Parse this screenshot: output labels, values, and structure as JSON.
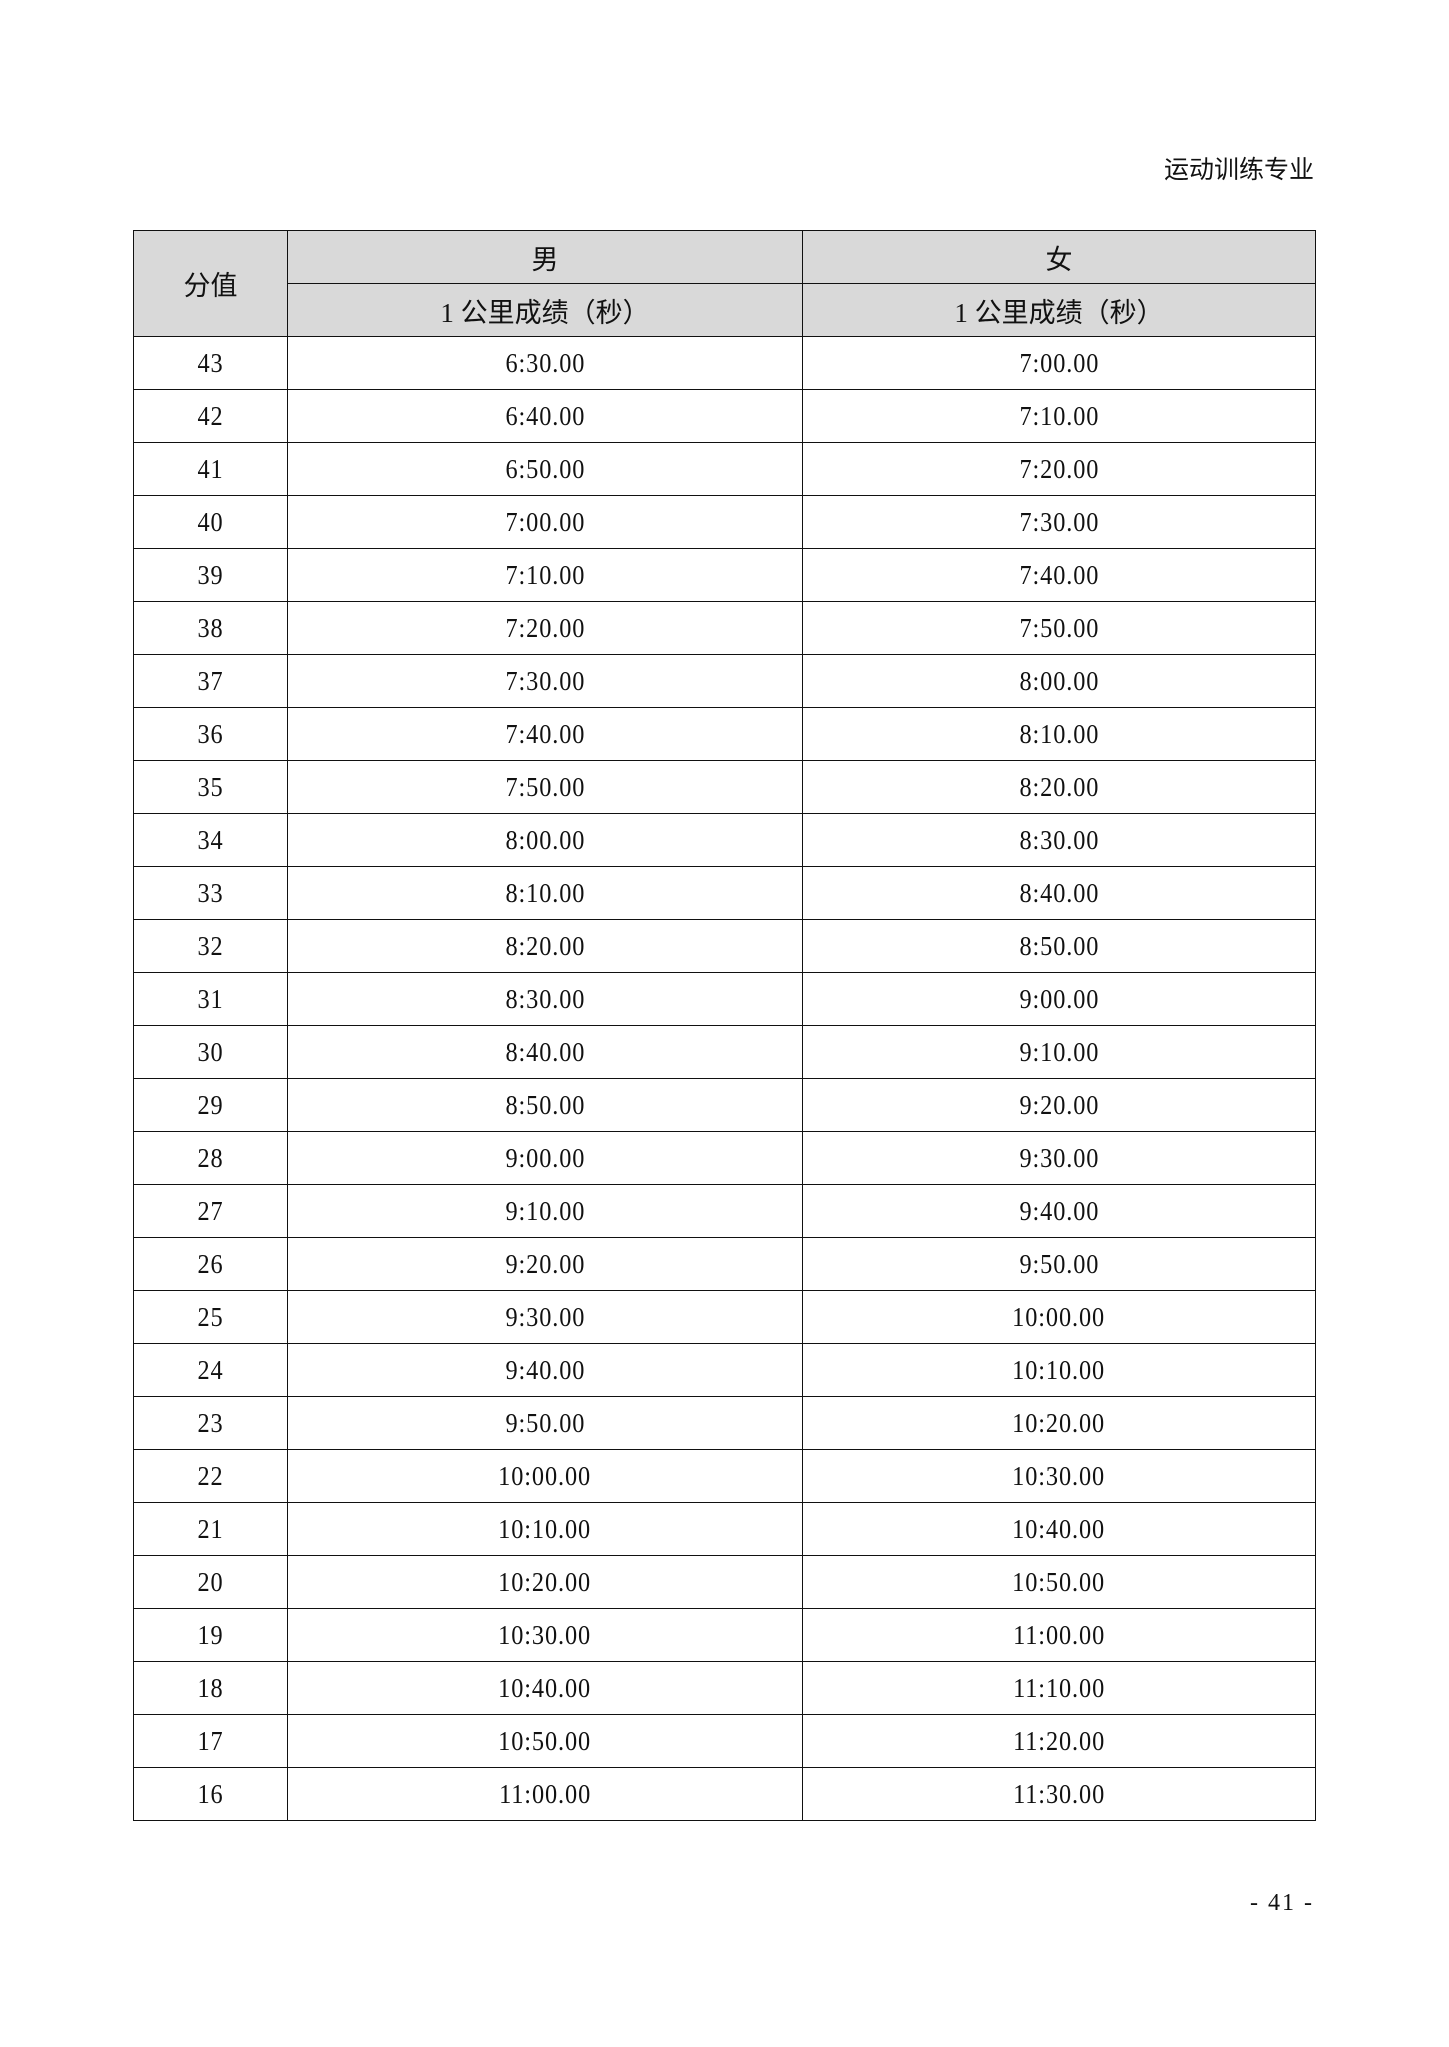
{
  "running_head": "运动训练专业",
  "table": {
    "header": {
      "score": "分值",
      "male": "男",
      "female": "女",
      "male_sub": "1 公里成绩（秒）",
      "female_sub": "1 公里成绩（秒）"
    },
    "rows": [
      [
        "43",
        "6:30.00",
        "7:00.00"
      ],
      [
        "42",
        "6:40.00",
        "7:10.00"
      ],
      [
        "41",
        "6:50.00",
        "7:20.00"
      ],
      [
        "40",
        "7:00.00",
        "7:30.00"
      ],
      [
        "39",
        "7:10.00",
        "7:40.00"
      ],
      [
        "38",
        "7:20.00",
        "7:50.00"
      ],
      [
        "37",
        "7:30.00",
        "8:00.00"
      ],
      [
        "36",
        "7:40.00",
        "8:10.00"
      ],
      [
        "35",
        "7:50.00",
        "8:20.00"
      ],
      [
        "34",
        "8:00.00",
        "8:30.00"
      ],
      [
        "33",
        "8:10.00",
        "8:40.00"
      ],
      [
        "32",
        "8:20.00",
        "8:50.00"
      ],
      [
        "31",
        "8:30.00",
        "9:00.00"
      ],
      [
        "30",
        "8:40.00",
        "9:10.00"
      ],
      [
        "29",
        "8:50.00",
        "9:20.00"
      ],
      [
        "28",
        "9:00.00",
        "9:30.00"
      ],
      [
        "27",
        "9:10.00",
        "9:40.00"
      ],
      [
        "26",
        "9:20.00",
        "9:50.00"
      ],
      [
        "25",
        "9:30.00",
        "10:00.00"
      ],
      [
        "24",
        "9:40.00",
        "10:10.00"
      ],
      [
        "23",
        "9:50.00",
        "10:20.00"
      ],
      [
        "22",
        "10:00.00",
        "10:30.00"
      ],
      [
        "21",
        "10:10.00",
        "10:40.00"
      ],
      [
        "20",
        "10:20.00",
        "10:50.00"
      ],
      [
        "19",
        "10:30.00",
        "11:00.00"
      ],
      [
        "18",
        "10:40.00",
        "11:10.00"
      ],
      [
        "17",
        "10:50.00",
        "11:20.00"
      ],
      [
        "16",
        "11:00.00",
        "11:30.00"
      ]
    ]
  },
  "page_number": "- 41 -"
}
